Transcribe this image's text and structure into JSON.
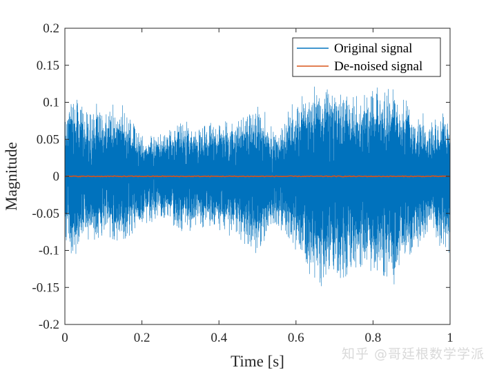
{
  "chart_data": {
    "type": "line",
    "xlabel": "Time [s]",
    "ylabel": "Magnitude",
    "xlim": [
      0,
      1
    ],
    "ylim": [
      -0.2,
      0.2
    ],
    "x_ticks": [
      "0",
      "0.2",
      "0.4",
      "0.6",
      "0.8",
      "1"
    ],
    "y_ticks": [
      "0.2",
      "0.15",
      "0.1",
      "0.05",
      "0",
      "-0.05",
      "-0.1",
      "-0.15",
      "-0.2"
    ],
    "grid": false,
    "legend_position": "top-right",
    "series": [
      {
        "name": "Original signal",
        "color": "#0072BD",
        "envelope_time": [
          0,
          0.02,
          0.05,
          0.1,
          0.15,
          0.2,
          0.25,
          0.3,
          0.35,
          0.4,
          0.45,
          0.5,
          0.55,
          0.6,
          0.65,
          0.7,
          0.75,
          0.8,
          0.85,
          0.9,
          0.95,
          1.0
        ],
        "envelope_upper": [
          0.09,
          0.13,
          0.1,
          0.1,
          0.1,
          0.06,
          0.06,
          0.08,
          0.07,
          0.08,
          0.08,
          0.11,
          0.06,
          0.11,
          0.13,
          0.13,
          0.12,
          0.12,
          0.13,
          0.1,
          0.08,
          0.1
        ],
        "envelope_lower": [
          -0.09,
          -0.12,
          -0.09,
          -0.09,
          -0.1,
          -0.07,
          -0.06,
          -0.08,
          -0.07,
          -0.08,
          -0.09,
          -0.11,
          -0.07,
          -0.12,
          -0.15,
          -0.16,
          -0.14,
          -0.14,
          -0.16,
          -0.12,
          -0.08,
          -0.12
        ]
      },
      {
        "name": "De-noised signal",
        "color": "#D95319",
        "approx_value": 0
      }
    ]
  },
  "watermark": "知乎 @哥廷根数学学派"
}
